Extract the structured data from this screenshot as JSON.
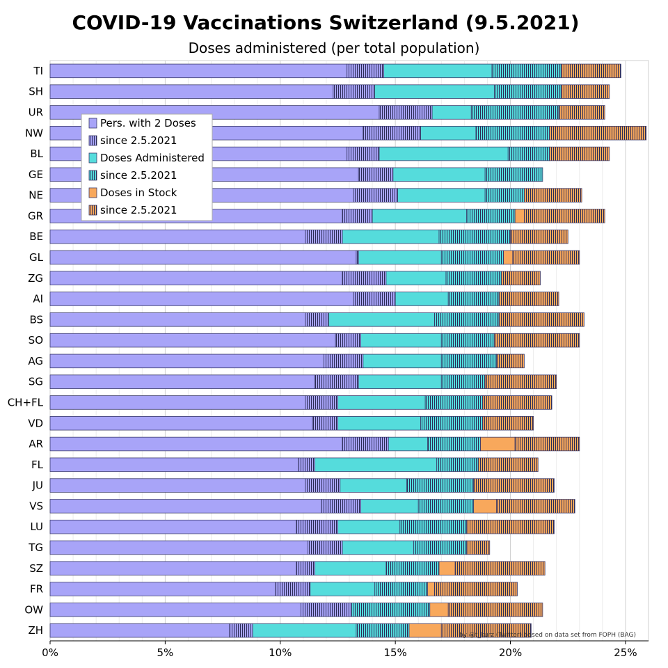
{
  "chart_data": {
    "type": "bar",
    "orientation": "horizontal",
    "stacked": true,
    "title": "COVID-19 Vaccinations Switzerland (9.5.2021)",
    "subtitle": "Doses administered (per total population)",
    "xlabel": "",
    "ylabel": "",
    "xlim": [
      0,
      26
    ],
    "x_ticks": [
      0,
      5,
      10,
      15,
      20,
      25
    ],
    "x_tick_labels": [
      "0%",
      "5%",
      "10%",
      "15%",
      "20%",
      "25%"
    ],
    "grid": true,
    "legend_position": "top-left",
    "credit": "by @t_kurz (Twitter) based on data set from FOPH (BAG)",
    "categories": [
      "TI",
      "SH",
      "UR",
      "NW",
      "BL",
      "GE",
      "NE",
      "GR",
      "BE",
      "GL",
      "ZG",
      "AI",
      "BS",
      "SO",
      "AG",
      "SG",
      "CH+FL",
      "VD",
      "AR",
      "FL",
      "JU",
      "VS",
      "LU",
      "TG",
      "SZ",
      "FR",
      "OW",
      "ZH"
    ],
    "series": [
      {
        "name": "Pers. with 2 Doses",
        "color": "#a8a4f8",
        "hatch": false,
        "values": [
          12.9,
          12.3,
          14.3,
          13.6,
          12.9,
          13.4,
          13.2,
          12.7,
          11.1,
          13.3,
          12.7,
          13.2,
          11.1,
          12.4,
          11.9,
          11.5,
          11.1,
          11.4,
          12.7,
          10.8,
          11.1,
          11.8,
          10.7,
          11.2,
          10.7,
          9.8,
          10.9,
          7.8
        ]
      },
      {
        "name": "since 2.5.2021",
        "color": "#a8a4f8",
        "hatch": true,
        "values": [
          1.6,
          1.8,
          2.3,
          2.5,
          1.4,
          1.5,
          1.9,
          1.3,
          1.6,
          0.1,
          1.9,
          1.8,
          1.0,
          1.1,
          1.7,
          1.9,
          1.4,
          1.1,
          2.0,
          0.7,
          1.5,
          1.7,
          1.8,
          1.5,
          0.8,
          1.5,
          2.2,
          1.0
        ]
      },
      {
        "name": "Doses Administered",
        "color": "#55dcdc",
        "hatch": false,
        "values": [
          4.7,
          5.2,
          1.7,
          2.4,
          5.6,
          4.0,
          3.8,
          4.1,
          4.2,
          3.6,
          2.6,
          2.3,
          4.6,
          3.5,
          3.4,
          3.6,
          3.8,
          3.6,
          1.7,
          5.3,
          2.9,
          2.5,
          2.7,
          3.1,
          3.1,
          2.8,
          0.1,
          4.5
        ]
      },
      {
        "name": "since 2.5.2021",
        "color": "#55dcdc",
        "hatch": true,
        "values": [
          3.0,
          2.9,
          3.8,
          3.2,
          1.8,
          2.5,
          1.7,
          2.1,
          3.1,
          2.7,
          2.4,
          2.2,
          2.8,
          2.3,
          2.4,
          1.9,
          2.5,
          2.7,
          2.3,
          1.8,
          2.9,
          2.4,
          2.9,
          2.3,
          2.3,
          2.3,
          3.3,
          2.3
        ]
      },
      {
        "name": "Doses in Stock",
        "color": "#f8a85c",
        "hatch": false,
        "values": [
          0,
          0,
          0,
          0,
          0,
          0,
          0,
          0.4,
          0,
          0.4,
          0,
          0,
          0,
          0,
          0,
          0,
          0,
          0,
          1.5,
          0,
          0,
          1.0,
          0,
          0,
          0.7,
          0.3,
          0.8,
          1.4
        ]
      },
      {
        "name": "since 2.5.2021",
        "color": "#f8a85c",
        "hatch": true,
        "values": [
          2.6,
          2.1,
          2.0,
          4.2,
          2.6,
          0,
          2.5,
          3.5,
          2.5,
          2.9,
          1.7,
          2.6,
          3.7,
          3.7,
          1.2,
          3.1,
          3.0,
          2.2,
          2.8,
          2.6,
          3.5,
          3.4,
          3.8,
          1.0,
          3.9,
          3.6,
          4.1,
          3.9
        ]
      }
    ]
  }
}
